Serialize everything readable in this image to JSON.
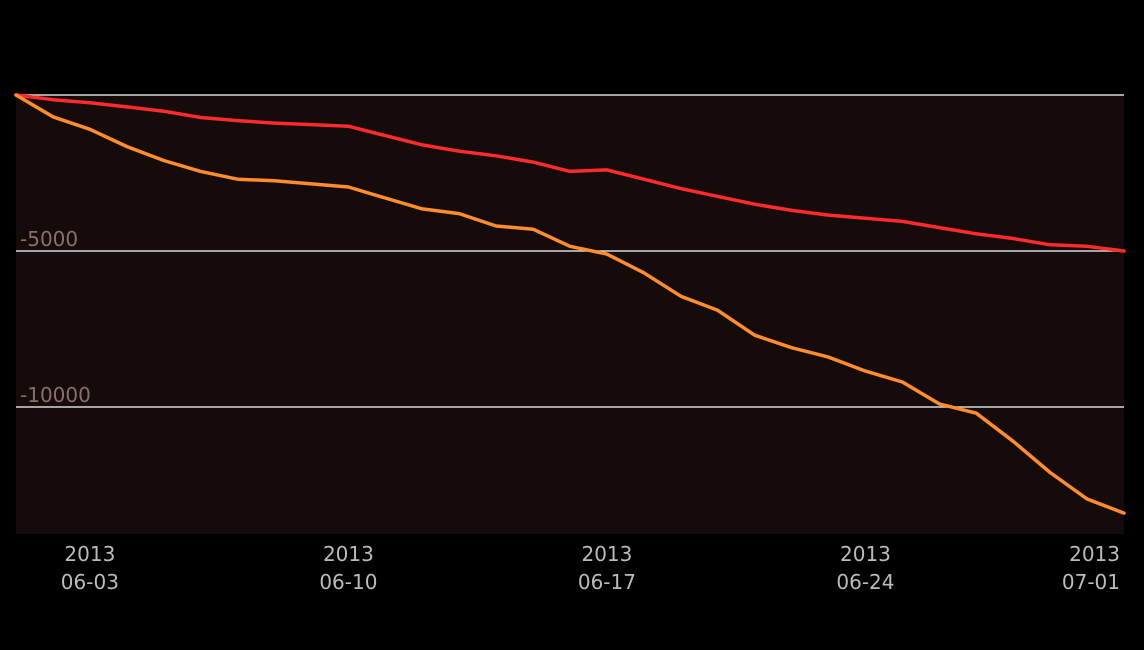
{
  "chart_data": {
    "type": "line",
    "title": "",
    "xlabel": "",
    "ylabel": "",
    "grid": true,
    "xlim": [
      "2013-06-01",
      "2013-07-01"
    ],
    "ylim": [
      -14200,
      0
    ],
    "y_ticks": [
      {
        "value": 0,
        "label": ""
      },
      {
        "value": -5000,
        "label": "-5000"
      },
      {
        "value": -10000,
        "label": "-10000"
      }
    ],
    "x_ticks": [
      {
        "value": "2013-06-03",
        "line1": "2013",
        "line2": "06-03"
      },
      {
        "value": "2013-06-10",
        "line1": "2013",
        "line2": "06-10"
      },
      {
        "value": "2013-06-17",
        "line1": "2013",
        "line2": "06-17"
      },
      {
        "value": "2013-06-24",
        "line1": "2013",
        "line2": "06-24"
      },
      {
        "value": "2013-07-01",
        "line1": "2013",
        "line2": "07-01"
      }
    ],
    "colors": {
      "background": "#000000",
      "plot_background": "#150b0b",
      "grid": "#d8d8d8",
      "y_tick_label": "#8a6e6e",
      "x_tick_label": "#bbbbbb"
    },
    "series": [
      {
        "color": "#ff2a2a",
        "points": [
          [
            "2013-06-01",
            0
          ],
          [
            "2013-06-02",
            -150
          ],
          [
            "2013-06-03",
            -250
          ],
          [
            "2013-06-04",
            -380
          ],
          [
            "2013-06-05",
            -520
          ],
          [
            "2013-06-06",
            -720
          ],
          [
            "2013-06-07",
            -820
          ],
          [
            "2013-06-08",
            -900
          ],
          [
            "2013-06-09",
            -950
          ],
          [
            "2013-06-10",
            -1000
          ],
          [
            "2013-06-11",
            -1300
          ],
          [
            "2013-06-12",
            -1600
          ],
          [
            "2013-06-13",
            -1800
          ],
          [
            "2013-06-14",
            -1950
          ],
          [
            "2013-06-15",
            -2150
          ],
          [
            "2013-06-16",
            -2450
          ],
          [
            "2013-06-17",
            -2400
          ],
          [
            "2013-06-18",
            -2700
          ],
          [
            "2013-06-19",
            -3000
          ],
          [
            "2013-06-20",
            -3250
          ],
          [
            "2013-06-21",
            -3500
          ],
          [
            "2013-06-22",
            -3700
          ],
          [
            "2013-06-23",
            -3850
          ],
          [
            "2013-06-24",
            -3950
          ],
          [
            "2013-06-25",
            -4050
          ],
          [
            "2013-06-26",
            -4250
          ],
          [
            "2013-06-27",
            -4450
          ],
          [
            "2013-06-28",
            -4600
          ],
          [
            "2013-06-29",
            -4800
          ],
          [
            "2013-06-30",
            -4850
          ],
          [
            "2013-07-01",
            -5000
          ]
        ]
      },
      {
        "color": "#ff8c2e",
        "points": [
          [
            "2013-06-01",
            0
          ],
          [
            "2013-06-02",
            -700
          ],
          [
            "2013-06-03",
            -1100
          ],
          [
            "2013-06-04",
            -1650
          ],
          [
            "2013-06-05",
            -2100
          ],
          [
            "2013-06-06",
            -2450
          ],
          [
            "2013-06-07",
            -2700
          ],
          [
            "2013-06-08",
            -2750
          ],
          [
            "2013-06-09",
            -2850
          ],
          [
            "2013-06-10",
            -2950
          ],
          [
            "2013-06-11",
            -3300
          ],
          [
            "2013-06-12",
            -3650
          ],
          [
            "2013-06-13",
            -3800
          ],
          [
            "2013-06-14",
            -4200
          ],
          [
            "2013-06-15",
            -4300
          ],
          [
            "2013-06-16",
            -4850
          ],
          [
            "2013-06-17",
            -5100
          ],
          [
            "2013-06-18",
            -5700
          ],
          [
            "2013-06-19",
            -6450
          ],
          [
            "2013-06-20",
            -6900
          ],
          [
            "2013-06-21",
            -7700
          ],
          [
            "2013-06-22",
            -8100
          ],
          [
            "2013-06-23",
            -8400
          ],
          [
            "2013-06-24",
            -8850
          ],
          [
            "2013-06-25",
            -9200
          ],
          [
            "2013-06-26",
            -9900
          ],
          [
            "2013-06-27",
            -10200
          ],
          [
            "2013-06-28",
            -11100
          ],
          [
            "2013-06-29",
            -12100
          ],
          [
            "2013-06-30",
            -12950
          ],
          [
            "2013-07-01",
            -13400
          ]
        ]
      }
    ]
  }
}
